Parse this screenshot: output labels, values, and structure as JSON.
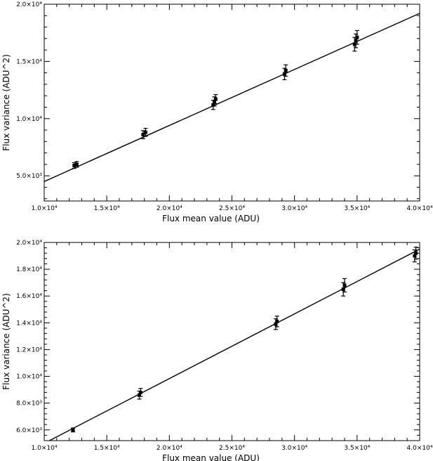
{
  "chart_data": [
    {
      "type": "scatter",
      "xlabel": "Flux mean value (ADU)",
      "ylabel": "Flux variance (ADU^2)",
      "xlim": [
        10000,
        40000
      ],
      "ylim": [
        2800,
        20000
      ],
      "xticks": [
        10000,
        15000,
        20000,
        25000,
        30000,
        35000,
        40000
      ],
      "xtick_labels": [
        "1.0×10⁴",
        "1.5×10⁴",
        "2.0×10⁴",
        "2.5×10⁴",
        "3.0×10⁴",
        "3.5×10⁴",
        "4.0×10⁴"
      ],
      "yticks": [
        5000,
        10000,
        15000,
        20000
      ],
      "ytick_labels": [
        "5.0×10³",
        "1.0×10⁴",
        "1.5×10⁴",
        "2.0×10⁴"
      ],
      "fit_line": {
        "x": [
          10000,
          40000
        ],
        "y": [
          4500,
          19200
        ]
      },
      "points": [
        {
          "x": 12400,
          "y": 5900,
          "err": 250
        },
        {
          "x": 12600,
          "y": 6000,
          "err": 250
        },
        {
          "x": 17900,
          "y": 8600,
          "err": 350
        },
        {
          "x": 18100,
          "y": 8800,
          "err": 350
        },
        {
          "x": 23500,
          "y": 11200,
          "err": 400
        },
        {
          "x": 23600,
          "y": 11500,
          "err": 400
        },
        {
          "x": 23700,
          "y": 11700,
          "err": 400
        },
        {
          "x": 29200,
          "y": 13900,
          "err": 500
        },
        {
          "x": 29300,
          "y": 14200,
          "err": 500
        },
        {
          "x": 34800,
          "y": 16500,
          "err": 600
        },
        {
          "x": 34900,
          "y": 16800,
          "err": 600
        },
        {
          "x": 35000,
          "y": 17100,
          "err": 600
        }
      ]
    },
    {
      "type": "scatter",
      "xlabel": "Flux mean value (ADU)",
      "ylabel": "Flux variance (ADU^2)",
      "xlim": [
        10000,
        40000
      ],
      "ylim": [
        5200,
        20000
      ],
      "xticks": [
        10000,
        15000,
        20000,
        25000,
        30000,
        35000,
        40000
      ],
      "xtick_labels": [
        "1.0×10⁴",
        "1.5×10⁴",
        "2.0×10⁴",
        "2.5×10⁴",
        "3.0×10⁴",
        "3.5×10⁴",
        "4.0×10⁴"
      ],
      "yticks": [
        6000,
        8000,
        10000,
        12000,
        14000,
        16000,
        18000,
        20000
      ],
      "ytick_labels": [
        "6.0×10³",
        "8.0×10³",
        "1.0×10⁴",
        "1.2×10⁴",
        "1.4×10⁴",
        "1.6×10⁴",
        "1.8×10⁴",
        "2.0×10⁴"
      ],
      "fit_line": {
        "x": [
          10000,
          40000
        ],
        "y": [
          5000,
          19500
        ]
      },
      "points": [
        {
          "x": 12300,
          "y": 6000,
          "err": 150
        },
        {
          "x": 17600,
          "y": 8600,
          "err": 300
        },
        {
          "x": 17700,
          "y": 8800,
          "err": 300
        },
        {
          "x": 28500,
          "y": 13900,
          "err": 400
        },
        {
          "x": 28600,
          "y": 14100,
          "err": 400
        },
        {
          "x": 33900,
          "y": 16500,
          "err": 500
        },
        {
          "x": 34000,
          "y": 16800,
          "err": 500
        },
        {
          "x": 39600,
          "y": 19000,
          "err": 450
        },
        {
          "x": 39700,
          "y": 19200,
          "err": 450
        }
      ]
    }
  ]
}
